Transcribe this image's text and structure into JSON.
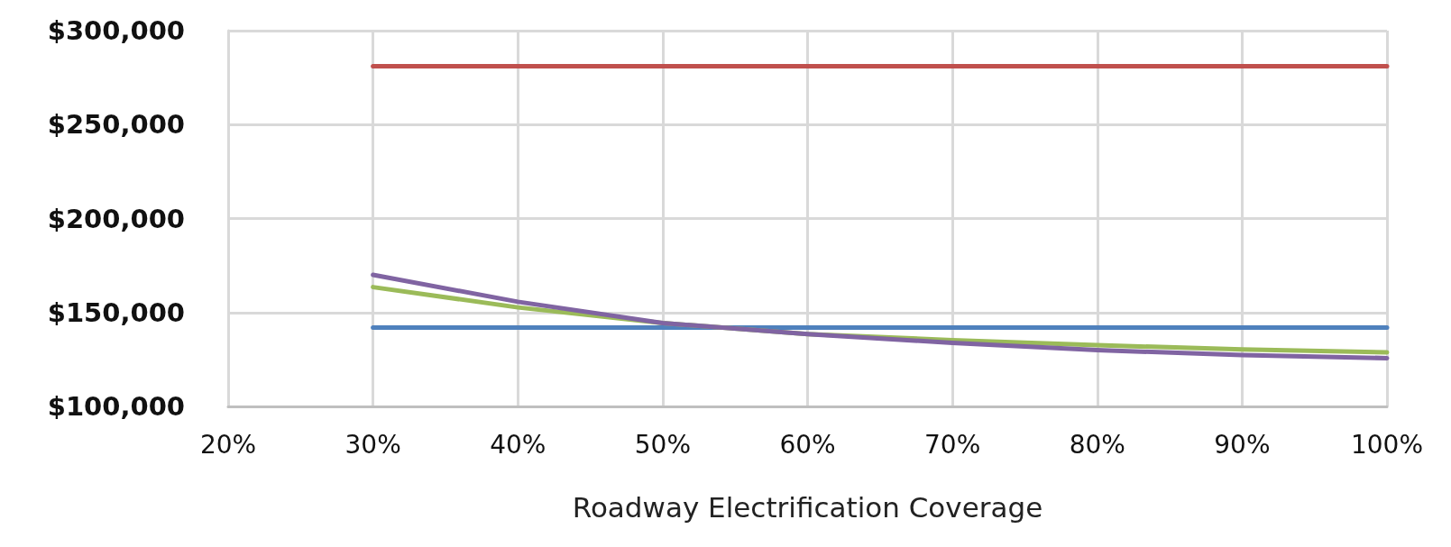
{
  "chart_data": {
    "type": "line",
    "xlabel": "Roadway Electrification Coverage",
    "x": [
      30,
      40,
      50,
      60,
      70,
      80,
      90,
      100
    ],
    "series": [
      {
        "color": "#c0504d",
        "values": [
          281000,
          281000,
          281000,
          281000,
          281000,
          281000,
          281000,
          281000
        ]
      },
      {
        "color": "#4f81bd",
        "values": [
          142000,
          142000,
          142000,
          142000,
          142000,
          142000,
          142000,
          142000
        ]
      },
      {
        "color": "#9bbb59",
        "values": [
          163500,
          152700,
          144400,
          138500,
          135300,
          132600,
          130300,
          128800
        ]
      },
      {
        "color": "#8064a2",
        "values": [
          170000,
          155700,
          144400,
          138500,
          133800,
          130000,
          127300,
          125700
        ]
      }
    ],
    "xlim": [
      20,
      100
    ],
    "xticks": [
      {
        "value": 20,
        "label": "20%"
      },
      {
        "value": 30,
        "label": "30%"
      },
      {
        "value": 40,
        "label": "40%"
      },
      {
        "value": 50,
        "label": "50%"
      },
      {
        "value": 60,
        "label": "60%"
      },
      {
        "value": 70,
        "label": "70%"
      },
      {
        "value": 80,
        "label": "80%"
      },
      {
        "value": 90,
        "label": "90%"
      },
      {
        "value": 100,
        "label": "100%"
      }
    ],
    "ylim": [
      100000,
      300000
    ],
    "yticks": [
      {
        "value": 100000,
        "label": "$100,000"
      },
      {
        "value": 150000,
        "label": "$150,000"
      },
      {
        "value": 200000,
        "label": "$200,000"
      },
      {
        "value": 250000,
        "label": "$250,000"
      },
      {
        "value": 300000,
        "label": "$300,000"
      }
    ],
    "grid": true,
    "marker": "none",
    "line_style": "solid"
  }
}
